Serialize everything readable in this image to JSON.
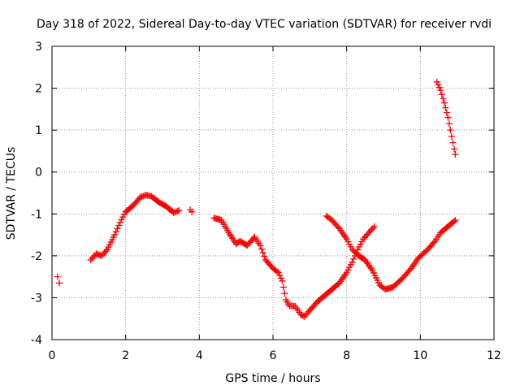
{
  "chart_data": {
    "type": "scatter",
    "title": "Day 318 of 2022, Sidereal Day-to-day VTEC variation (SDTVAR) for receiver rvdi",
    "xlabel": "GPS time / hours",
    "ylabel": "SDTVAR / TECUs",
    "xlim": [
      0,
      12
    ],
    "ylim": [
      -4,
      3
    ],
    "xticks": [
      "0",
      "2",
      "4",
      "6",
      "8",
      "10",
      "12"
    ],
    "yticks": [
      "3",
      "2",
      "1",
      "0",
      "-1",
      "-2",
      "-3",
      "-4"
    ],
    "grid": true,
    "marker": "plus",
    "marker_color": "#ff0000",
    "series": [
      {
        "values": [
          [
            0.15,
            -2.5
          ],
          [
            0.2,
            -2.65
          ]
        ]
      },
      {
        "values": [
          [
            1.05,
            -2.1
          ],
          [
            1.2,
            -1.95
          ],
          [
            1.35,
            -2.0
          ],
          [
            1.5,
            -1.85
          ],
          [
            1.7,
            -1.5
          ],
          [
            1.85,
            -1.2
          ],
          [
            2.0,
            -0.95
          ],
          [
            2.2,
            -0.8
          ],
          [
            2.4,
            -0.6
          ],
          [
            2.55,
            -0.55
          ],
          [
            2.7,
            -0.58
          ],
          [
            2.9,
            -0.72
          ],
          [
            3.1,
            -0.82
          ],
          [
            3.3,
            -0.97
          ],
          [
            3.45,
            -0.92
          ]
        ]
      },
      {
        "values": [
          [
            3.75,
            -0.9
          ],
          [
            3.8,
            -0.95
          ]
        ]
      },
      {
        "values": [
          [
            4.4,
            -1.1
          ],
          [
            4.6,
            -1.15
          ],
          [
            4.8,
            -1.45
          ],
          [
            5.0,
            -1.72
          ],
          [
            5.1,
            -1.65
          ],
          [
            5.3,
            -1.75
          ],
          [
            5.5,
            -1.55
          ],
          [
            5.65,
            -1.75
          ],
          [
            5.8,
            -2.1
          ],
          [
            6.0,
            -2.3
          ],
          [
            6.15,
            -2.4
          ],
          [
            6.25,
            -2.6
          ],
          [
            6.35,
            -3.05
          ],
          [
            6.45,
            -3.2
          ],
          [
            6.6,
            -3.2
          ],
          [
            6.75,
            -3.4
          ],
          [
            6.85,
            -3.45
          ],
          [
            7.0,
            -3.3
          ],
          [
            7.2,
            -3.1
          ],
          [
            7.4,
            -2.95
          ],
          [
            7.6,
            -2.8
          ],
          [
            7.8,
            -2.65
          ],
          [
            8.0,
            -2.4
          ],
          [
            8.15,
            -2.15
          ],
          [
            8.3,
            -1.85
          ],
          [
            8.45,
            -1.6
          ],
          [
            8.6,
            -1.45
          ],
          [
            8.75,
            -1.3
          ]
        ]
      },
      {
        "values": [
          [
            7.45,
            -1.05
          ],
          [
            7.6,
            -1.15
          ],
          [
            7.8,
            -1.35
          ],
          [
            8.0,
            -1.6
          ],
          [
            8.15,
            -1.85
          ],
          [
            8.3,
            -1.98
          ],
          [
            8.5,
            -2.1
          ],
          [
            8.7,
            -2.35
          ],
          [
            8.9,
            -2.7
          ],
          [
            9.05,
            -2.8
          ],
          [
            9.25,
            -2.75
          ],
          [
            9.5,
            -2.55
          ],
          [
            9.75,
            -2.3
          ],
          [
            9.95,
            -2.05
          ],
          [
            10.2,
            -1.85
          ],
          [
            10.4,
            -1.65
          ],
          [
            10.55,
            -1.45
          ],
          [
            10.75,
            -1.3
          ],
          [
            10.95,
            -1.15
          ]
        ]
      },
      {
        "values": [
          [
            10.45,
            2.15
          ],
          [
            10.55,
            1.95
          ],
          [
            10.65,
            1.65
          ],
          [
            10.75,
            1.3
          ],
          [
            10.85,
            0.85
          ],
          [
            10.92,
            0.55
          ],
          [
            10.95,
            0.42
          ]
        ]
      }
    ]
  }
}
